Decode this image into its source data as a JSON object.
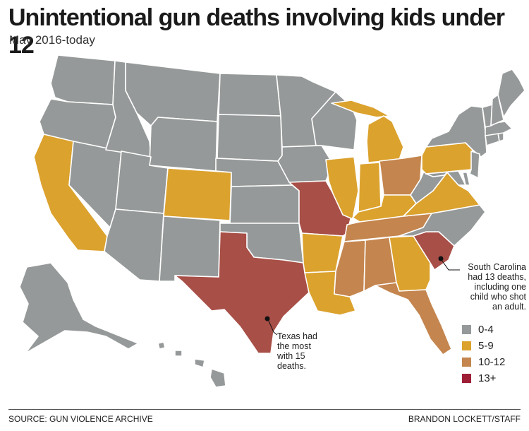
{
  "header": {
    "title": "Unintentional gun deaths involving kids under 12",
    "subtitle": "May 2016-today"
  },
  "colors": {
    "gray": "#969999",
    "gold": "#dba22e",
    "tan": "#c4854e",
    "red": "#a84f47",
    "legend_red": "#9e1f35",
    "border": "#ffffff"
  },
  "legend": [
    {
      "label": "0-4",
      "color": "#969999"
    },
    {
      "label": "5-9",
      "color": "#dba22e"
    },
    {
      "label": "10-12",
      "color": "#c4854e"
    },
    {
      "label": "13+",
      "color": "#9e1f35"
    }
  ],
  "annotations": {
    "south_carolina": "South Carolina had 13 deaths, including one child who shot an adult.",
    "texas": "Texas had the most with 15 deaths."
  },
  "footer": {
    "source": "SOURCE: GUN VIOLENCE ARCHIVE",
    "credit": "BRANDON LOCKETT/STAFF"
  },
  "regions": [
    {
      "name": "Washington",
      "category": "0-4"
    },
    {
      "name": "Oregon",
      "category": "0-4"
    },
    {
      "name": "California",
      "category": "5-9"
    },
    {
      "name": "Nevada",
      "category": "0-4"
    },
    {
      "name": "Idaho",
      "category": "0-4"
    },
    {
      "name": "Montana",
      "category": "0-4"
    },
    {
      "name": "Wyoming",
      "category": "0-4"
    },
    {
      "name": "Utah",
      "category": "0-4"
    },
    {
      "name": "Arizona",
      "category": "0-4"
    },
    {
      "name": "Colorado",
      "category": "5-9"
    },
    {
      "name": "New Mexico",
      "category": "0-4"
    },
    {
      "name": "North Dakota",
      "category": "0-4"
    },
    {
      "name": "South Dakota",
      "category": "0-4"
    },
    {
      "name": "Nebraska",
      "category": "0-4"
    },
    {
      "name": "Kansas",
      "category": "0-4"
    },
    {
      "name": "Oklahoma",
      "category": "0-4"
    },
    {
      "name": "Texas",
      "category": "13+"
    },
    {
      "name": "Minnesota",
      "category": "0-4"
    },
    {
      "name": "Iowa",
      "category": "0-4"
    },
    {
      "name": "Missouri",
      "category": "13+"
    },
    {
      "name": "Arkansas",
      "category": "5-9"
    },
    {
      "name": "Louisiana",
      "category": "5-9"
    },
    {
      "name": "Wisconsin",
      "category": "0-4"
    },
    {
      "name": "Illinois",
      "category": "5-9"
    },
    {
      "name": "Michigan",
      "category": "5-9"
    },
    {
      "name": "Indiana",
      "category": "5-9"
    },
    {
      "name": "Ohio",
      "category": "10-12"
    },
    {
      "name": "Kentucky",
      "category": "5-9"
    },
    {
      "name": "Tennessee",
      "category": "10-12"
    },
    {
      "name": "Mississippi",
      "category": "10-12"
    },
    {
      "name": "Alabama",
      "category": "10-12"
    },
    {
      "name": "Georgia",
      "category": "5-9"
    },
    {
      "name": "Florida",
      "category": "10-12"
    },
    {
      "name": "South Carolina",
      "category": "13+"
    },
    {
      "name": "North Carolina",
      "category": "0-4"
    },
    {
      "name": "Virginia",
      "category": "5-9"
    },
    {
      "name": "West Virginia",
      "category": "0-4"
    },
    {
      "name": "Pennsylvania",
      "category": "5-9"
    },
    {
      "name": "New York",
      "category": "0-4"
    },
    {
      "name": "Maryland",
      "category": "0-4"
    },
    {
      "name": "Delaware",
      "category": "0-4"
    },
    {
      "name": "New Jersey",
      "category": "0-4"
    },
    {
      "name": "Connecticut",
      "category": "0-4"
    },
    {
      "name": "Rhode Island",
      "category": "0-4"
    },
    {
      "name": "Massachusetts",
      "category": "0-4"
    },
    {
      "name": "Vermont",
      "category": "0-4"
    },
    {
      "name": "New Hampshire",
      "category": "0-4"
    },
    {
      "name": "Maine",
      "category": "0-4"
    },
    {
      "name": "Alaska",
      "category": "0-4"
    },
    {
      "name": "Hawaii",
      "category": "0-4"
    }
  ]
}
